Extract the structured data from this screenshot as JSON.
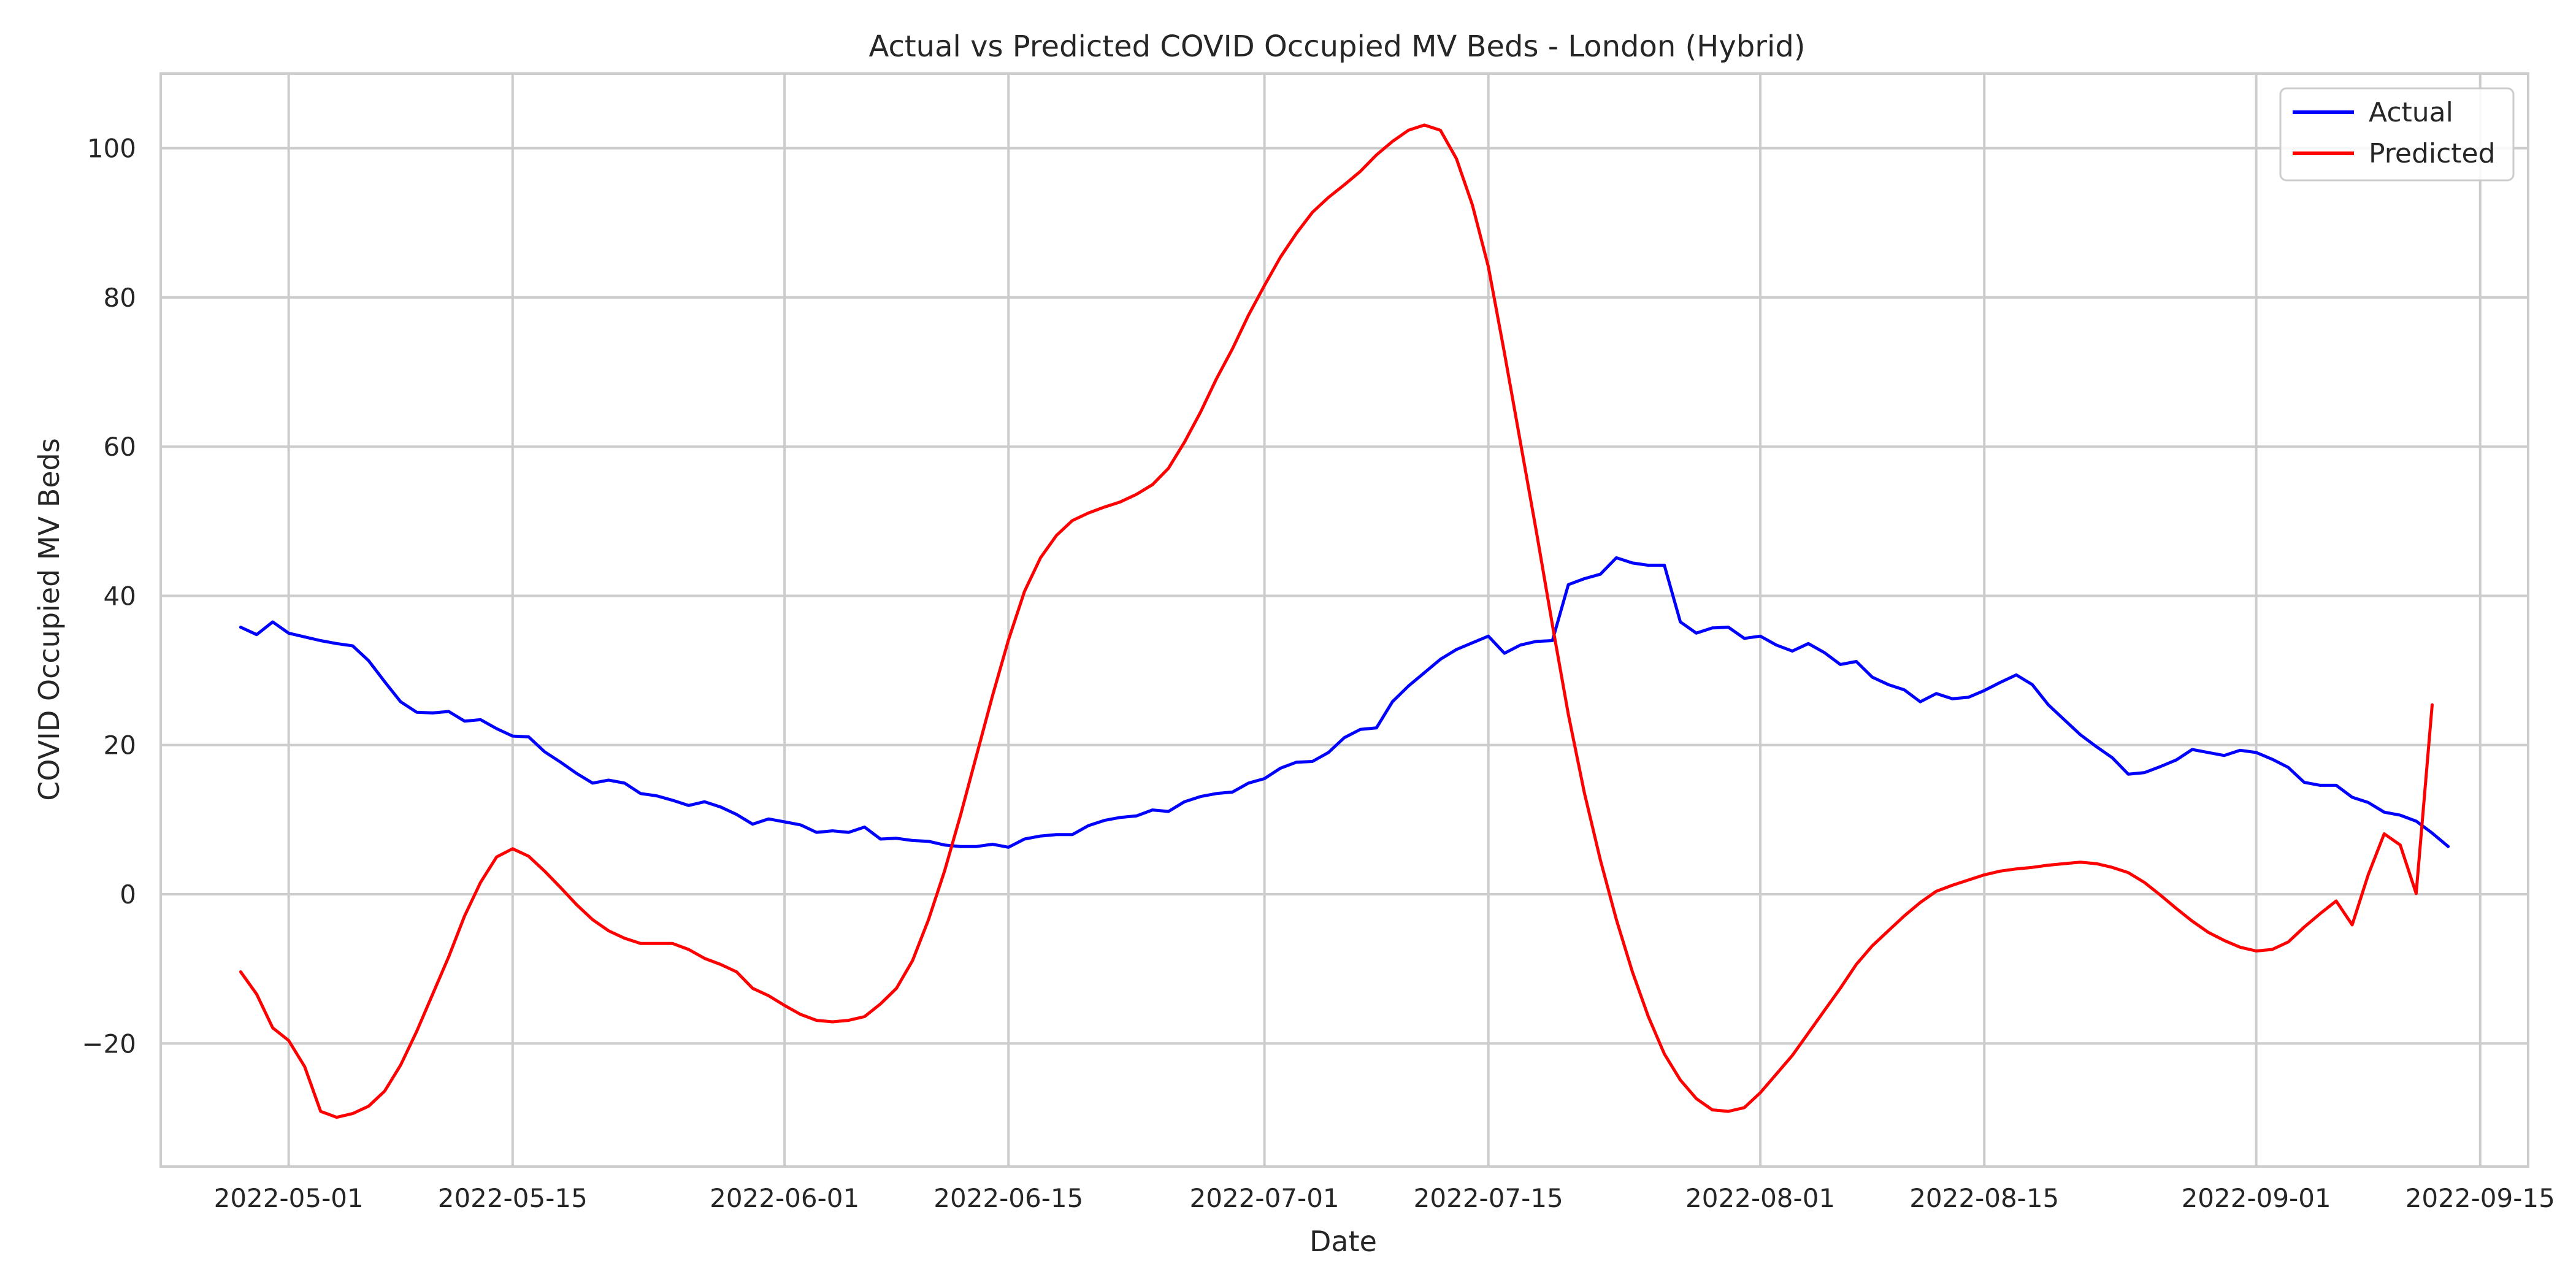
{
  "chart_data": {
    "type": "line",
    "title": "Actual vs Predicted COVID Occupied MV Beds - London (Hybrid)",
    "xlabel": "Date",
    "ylabel": "COVID Occupied MV Beds",
    "grid": true,
    "legend_placement": "top-right",
    "x_range": [
      "2022-04-23",
      "2022-09-18"
    ],
    "ylim": [
      -36.5,
      110
    ],
    "x_ticks": [
      "2022-05-01",
      "2022-05-15",
      "2022-06-01",
      "2022-06-15",
      "2022-07-01",
      "2022-07-15",
      "2022-08-01",
      "2022-08-15",
      "2022-09-01",
      "2022-09-15"
    ],
    "y_ticks": [
      -20,
      0,
      20,
      40,
      60,
      80,
      100
    ],
    "y_tick_labels": [
      "−20",
      "0",
      "20",
      "40",
      "60",
      "80",
      "100"
    ],
    "x_start": "2022-04-28",
    "series": [
      {
        "name": "Actual",
        "color": "#0000ff",
        "values": [
          35.8,
          34.8,
          36.5,
          35.0,
          34.5,
          34.0,
          33.6,
          33.3,
          31.3,
          28.5,
          25.8,
          24.4,
          24.3,
          24.5,
          23.2,
          23.4,
          22.2,
          21.2,
          21.1,
          19.1,
          17.7,
          16.2,
          14.9,
          15.3,
          14.9,
          13.5,
          13.2,
          12.6,
          11.9,
          12.4,
          11.7,
          10.7,
          9.4,
          10.1,
          9.7,
          9.3,
          8.3,
          8.5,
          8.3,
          9.0,
          7.4,
          7.5,
          7.2,
          7.1,
          6.6,
          6.4,
          6.4,
          6.7,
          6.3,
          7.4,
          7.8,
          8.0,
          8.0,
          9.2,
          9.9,
          10.3,
          10.5,
          11.3,
          11.1,
          12.4,
          13.1,
          13.5,
          13.7,
          14.9,
          15.5,
          16.9,
          17.7,
          17.8,
          19.0,
          21.0,
          22.1,
          22.3,
          25.8,
          27.9,
          29.7,
          31.5,
          32.8,
          33.7,
          34.6,
          32.3,
          33.4,
          33.9,
          34.0,
          41.5,
          42.3,
          42.9,
          45.1,
          44.4,
          44.1,
          44.1,
          36.5,
          35.0,
          35.7,
          35.8,
          34.3,
          34.6,
          33.4,
          32.6,
          33.6,
          32.4,
          30.8,
          31.2,
          29.1,
          28.1,
          27.4,
          25.8,
          26.9,
          26.2,
          26.4,
          27.3,
          28.4,
          29.4,
          28.1,
          25.4,
          23.4,
          21.4,
          19.8,
          18.3,
          16.1,
          16.3,
          17.1,
          18.0,
          19.4,
          19.0,
          18.6,
          19.3,
          19.0,
          18.1,
          17.0,
          15.0,
          14.6,
          14.6,
          13.0,
          12.3,
          11.0,
          10.6,
          9.8,
          8.2,
          6.4
        ]
      },
      {
        "name": "Predicted",
        "color": "#ff0000",
        "values": [
          -10.4,
          -13.4,
          -17.9,
          -19.6,
          -23.1,
          -29.1,
          -29.9,
          -29.4,
          -28.4,
          -26.4,
          -22.9,
          -18.4,
          -13.4,
          -8.4,
          -2.9,
          1.6,
          5.0,
          6.1,
          5.1,
          3.1,
          0.9,
          -1.4,
          -3.4,
          -4.9,
          -5.9,
          -6.6,
          -6.6,
          -6.6,
          -7.4,
          -8.6,
          -9.4,
          -10.4,
          -12.6,
          -13.6,
          -14.9,
          -16.1,
          -16.9,
          -17.1,
          -16.9,
          -16.4,
          -14.7,
          -12.6,
          -8.9,
          -3.4,
          3.1,
          10.6,
          18.6,
          26.6,
          34.1,
          40.6,
          45.1,
          48.1,
          50.1,
          51.1,
          51.9,
          52.6,
          53.6,
          54.9,
          57.1,
          60.6,
          64.6,
          69.1,
          73.1,
          77.6,
          81.6,
          85.4,
          88.6,
          91.4,
          93.4,
          95.1,
          96.9,
          99.1,
          100.9,
          102.4,
          103.1,
          102.4,
          98.6,
          92.4,
          84.1,
          72.6,
          60.6,
          48.6,
          36.1,
          24.1,
          13.6,
          4.6,
          -3.4,
          -10.4,
          -16.4,
          -21.4,
          -24.9,
          -27.4,
          -28.9,
          -29.1,
          -28.6,
          -26.6,
          -24.1,
          -21.6,
          -18.6,
          -15.6,
          -12.6,
          -9.4,
          -6.9,
          -4.9,
          -2.9,
          -1.1,
          0.4,
          1.2,
          1.9,
          2.6,
          3.1,
          3.4,
          3.6,
          3.9,
          4.1,
          4.3,
          4.1,
          3.6,
          2.9,
          1.6,
          -0.1,
          -1.9,
          -3.6,
          -5.1,
          -6.2,
          -7.1,
          -7.6,
          -7.4,
          -6.4,
          -4.4,
          -2.6,
          -0.9,
          -4.1,
          2.6,
          8.1,
          6.6,
          0.1,
          25.4
        ]
      }
    ]
  }
}
